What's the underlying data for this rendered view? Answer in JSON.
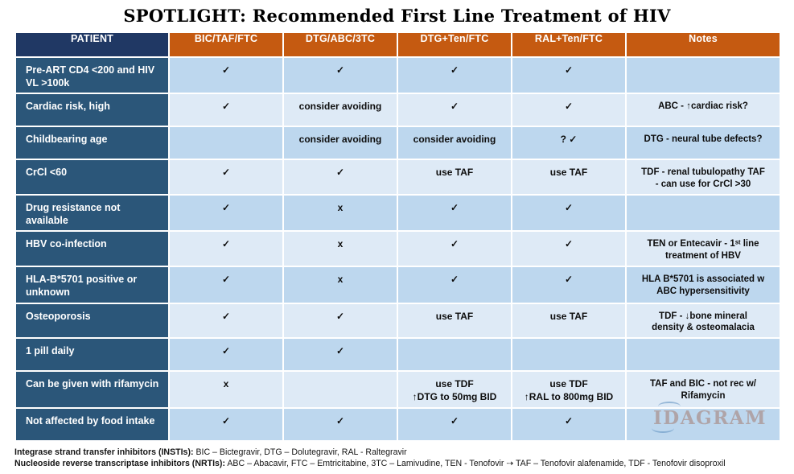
{
  "title": "SPOTLIGHT: Recommended First Line Treatment of HIV",
  "colors": {
    "header_accent_orange": "#c55a11",
    "header_patient_navy": "#203864",
    "row_label_navy": "#2b5679",
    "row_shade_dark": "#bdd7ee",
    "row_shade_light": "#deeaf6",
    "watermark_tan": "#9e6752"
  },
  "table": {
    "columns": [
      "PATIENT",
      "BIC/TAF/FTC",
      "DTG/ABC/3TC",
      "DTG+Ten/FTC",
      "RAL+Ten/FTC",
      "Notes"
    ],
    "rows": [
      {
        "patient": "Pre-ART CD4 <200 and HIV VL >100k",
        "cells": [
          "✓",
          "✓",
          "✓",
          "✓"
        ],
        "notes": ""
      },
      {
        "patient": "Cardiac risk, high",
        "cells": [
          "✓",
          "consider avoiding",
          "✓",
          "✓"
        ],
        "notes": "ABC - ↑cardiac risk?"
      },
      {
        "patient": "Childbearing age",
        "cells": [
          "",
          "consider avoiding",
          "consider avoiding",
          "? ✓"
        ],
        "notes": "DTG - neural tube defects?"
      },
      {
        "patient": "CrCl <60",
        "cells": [
          "✓",
          "✓",
          "use TAF",
          "use TAF"
        ],
        "notes": "TDF - renal tubulopathy TAF\n- can use for CrCl >30"
      },
      {
        "patient": "Drug resistance not available",
        "cells": [
          "✓",
          "x",
          "✓",
          "✓"
        ],
        "notes": ""
      },
      {
        "patient": "HBV co-infection",
        "cells": [
          "✓",
          "x",
          "✓",
          "✓"
        ],
        "notes": "TEN or Entecavir - 1ˢᵗ line\ntreatment of HBV"
      },
      {
        "patient": "HLA-B*5701 positive or unknown",
        "cells": [
          "✓",
          "x",
          "✓",
          "✓"
        ],
        "notes": "HLA B*5701 is associated w\nABC hypersensitivity"
      },
      {
        "patient": "Osteoporosis",
        "cells": [
          "✓",
          "✓",
          "use TAF",
          "use TAF"
        ],
        "notes": "TDF - ↓bone mineral\ndensity & osteomalacia"
      },
      {
        "patient": "1 pill daily",
        "cells": [
          "✓",
          "✓",
          "",
          ""
        ],
        "notes": ""
      },
      {
        "patient": "Can be given with rifamycin",
        "cells": [
          "x",
          "",
          "use TDF\n↑DTG to 50mg BID",
          "use TDF\n↑RAL to 800mg BID"
        ],
        "notes": "TAF and BIC - not rec w/\nRifamycin"
      },
      {
        "patient": "Not affected by food intake",
        "cells": [
          "✓",
          "✓",
          "✓",
          "✓"
        ],
        "notes": ""
      }
    ]
  },
  "watermark": "IDAGRAM",
  "footnotes": [
    {
      "label": "Integrase strand transfer inhibitors (INSTIs):",
      "text": " BIC – Bictegravir, DTG – Dolutegravir, RAL - Raltegravir"
    },
    {
      "label": "Nucleoside reverse transcriptase inhibitors (NRTIs):",
      "text": " ABC – Abacavir, FTC – Emtricitabine, 3TC – Lamivudine, TEN - Tenofovir ⇢ TAF – Tenofovir alafenamide, TDF - Tenofovir disoproxil"
    }
  ]
}
